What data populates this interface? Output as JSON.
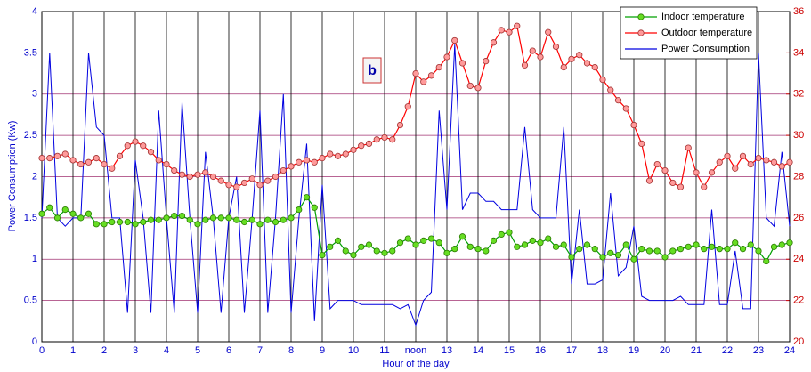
{
  "chart_data": {
    "type": "line",
    "annotation": "b",
    "x_label": "Hour of the day",
    "y_label": "Power Consumption  (Kw)",
    "xlim": [
      0,
      24
    ],
    "xticks": [
      0,
      1,
      2,
      3,
      4,
      5,
      6,
      7,
      8,
      9,
      10,
      11,
      {
        "value": 12,
        "label": "noon"
      },
      13,
      14,
      15,
      16,
      17,
      18,
      19,
      20,
      21,
      22,
      23,
      24
    ],
    "ylim": [
      0,
      4
    ],
    "yticks": [
      0,
      0.5,
      1,
      1.5,
      2,
      2.5,
      3,
      3.5,
      4
    ],
    "y2lim": [
      20,
      36
    ],
    "y2ticks": [
      20,
      22,
      24,
      26,
      28,
      30,
      32,
      34,
      36
    ],
    "grid": true,
    "legend": "upper right",
    "x": [
      0,
      0.25,
      0.5,
      0.75,
      1,
      1.25,
      1.5,
      1.75,
      2,
      2.25,
      2.5,
      2.75,
      3,
      3.25,
      3.5,
      3.75,
      4,
      4.25,
      4.5,
      4.75,
      5,
      5.25,
      5.5,
      5.75,
      6,
      6.25,
      6.5,
      6.75,
      7,
      7.25,
      7.5,
      7.75,
      8,
      8.25,
      8.5,
      8.75,
      9,
      9.25,
      9.5,
      9.75,
      10,
      10.25,
      10.5,
      10.75,
      11,
      11.25,
      11.5,
      11.75,
      12,
      12.25,
      12.5,
      12.75,
      13,
      13.25,
      13.5,
      13.75,
      14,
      14.25,
      14.5,
      14.75,
      15,
      15.25,
      15.5,
      15.75,
      16,
      16.25,
      16.5,
      16.75,
      17,
      17.25,
      17.5,
      17.75,
      18,
      18.25,
      18.5,
      18.75,
      19,
      19.25,
      19.5,
      19.75,
      20,
      20.25,
      20.5,
      20.75,
      21,
      21.25,
      21.5,
      21.75,
      22,
      22.25,
      22.5,
      22.75,
      23,
      23.25,
      23.5,
      23.75,
      24
    ],
    "series": [
      {
        "name": "Indoor temperature",
        "color": "#00a000",
        "marker_color": "#66dd22",
        "marker": true,
        "axis": "y2",
        "values": [
          26.2,
          26.5,
          26.0,
          26.4,
          26.2,
          26.0,
          26.2,
          25.7,
          25.7,
          25.8,
          25.8,
          25.8,
          25.7,
          25.8,
          25.9,
          25.9,
          26.0,
          26.1,
          26.1,
          25.9,
          25.7,
          25.9,
          26.0,
          26.0,
          26.0,
          25.9,
          25.8,
          25.9,
          25.7,
          25.9,
          25.8,
          25.9,
          26.0,
          26.4,
          27.0,
          26.5,
          24.2,
          24.6,
          24.9,
          24.4,
          24.2,
          24.6,
          24.7,
          24.4,
          24.3,
          24.4,
          24.8,
          25.0,
          24.7,
          24.9,
          25.0,
          24.8,
          24.3,
          24.5,
          25.1,
          24.6,
          24.5,
          24.4,
          24.9,
          25.2,
          25.3,
          24.6,
          24.7,
          24.9,
          24.8,
          25.0,
          24.6,
          24.7,
          24.1,
          24.5,
          24.7,
          24.5,
          24.1,
          24.3,
          24.2,
          24.7,
          24.0,
          24.5,
          24.4,
          24.4,
          24.1,
          24.4,
          24.5,
          24.6,
          24.7,
          24.5,
          24.6,
          24.5,
          24.5,
          24.8,
          24.5,
          24.7,
          24.4,
          23.9,
          24.6,
          24.7,
          24.8
        ]
      },
      {
        "name": "Outdoor temperature",
        "color": "#ff0000",
        "marker_color": "#ff9a9a",
        "marker": true,
        "axis": "y2",
        "values": [
          28.9,
          28.9,
          29.0,
          29.1,
          28.8,
          28.6,
          28.7,
          28.9,
          28.6,
          28.4,
          29.0,
          29.5,
          29.7,
          29.5,
          29.2,
          28.8,
          28.6,
          28.3,
          28.1,
          28.0,
          28.1,
          28.2,
          28.0,
          27.8,
          27.6,
          27.5,
          27.7,
          27.9,
          27.6,
          27.8,
          28.0,
          28.3,
          28.5,
          28.7,
          28.8,
          28.7,
          28.9,
          29.1,
          29.0,
          29.1,
          29.3,
          29.5,
          29.6,
          29.8,
          29.9,
          29.8,
          30.5,
          31.4,
          33.0,
          32.6,
          32.9,
          33.3,
          33.8,
          34.6,
          33.5,
          32.4,
          32.3,
          33.6,
          34.5,
          35.1,
          35.0,
          35.3,
          33.4,
          34.1,
          33.8,
          35.0,
          34.3,
          33.3,
          33.7,
          33.9,
          33.5,
          33.3,
          32.7,
          32.2,
          31.7,
          31.3,
          30.5,
          29.6,
          27.8,
          28.6,
          28.3,
          27.7,
          27.5,
          29.4,
          28.2,
          27.5,
          28.2,
          28.7,
          29.0,
          28.4,
          29.0,
          28.6,
          28.9,
          28.8,
          28.7,
          28.5,
          28.7
        ]
      },
      {
        "name": "Power Consumption",
        "color": "#0000e0",
        "marker": false,
        "values": [
          1.5,
          3.5,
          1.5,
          1.4,
          1.5,
          1.5,
          3.5,
          2.6,
          2.5,
          1.5,
          1.5,
          0.35,
          2.2,
          1.5,
          0.35,
          2.8,
          1.5,
          0.35,
          2.9,
          1.5,
          0.35,
          2.3,
          1.5,
          0.35,
          1.5,
          2.0,
          0.35,
          1.5,
          2.8,
          0.35,
          1.5,
          3.0,
          0.35,
          1.5,
          2.4,
          0.25,
          1.9,
          0.4,
          0.5,
          0.5,
          0.5,
          0.45,
          0.45,
          0.45,
          0.45,
          0.45,
          0.4,
          0.45,
          0.2,
          0.5,
          0.6,
          2.8,
          1.6,
          3.6,
          1.6,
          1.8,
          1.8,
          1.7,
          1.7,
          1.6,
          1.6,
          1.6,
          2.6,
          1.6,
          1.5,
          1.5,
          1.5,
          2.6,
          0.7,
          1.6,
          0.7,
          0.7,
          0.75,
          1.8,
          0.8,
          0.9,
          1.4,
          0.55,
          0.5,
          0.5,
          0.5,
          0.5,
          0.55,
          0.45,
          0.45,
          0.45,
          1.6,
          0.45,
          0.45,
          1.1,
          0.4,
          0.4,
          3.5,
          1.5,
          1.4,
          2.3,
          1.4
        ]
      }
    ]
  }
}
